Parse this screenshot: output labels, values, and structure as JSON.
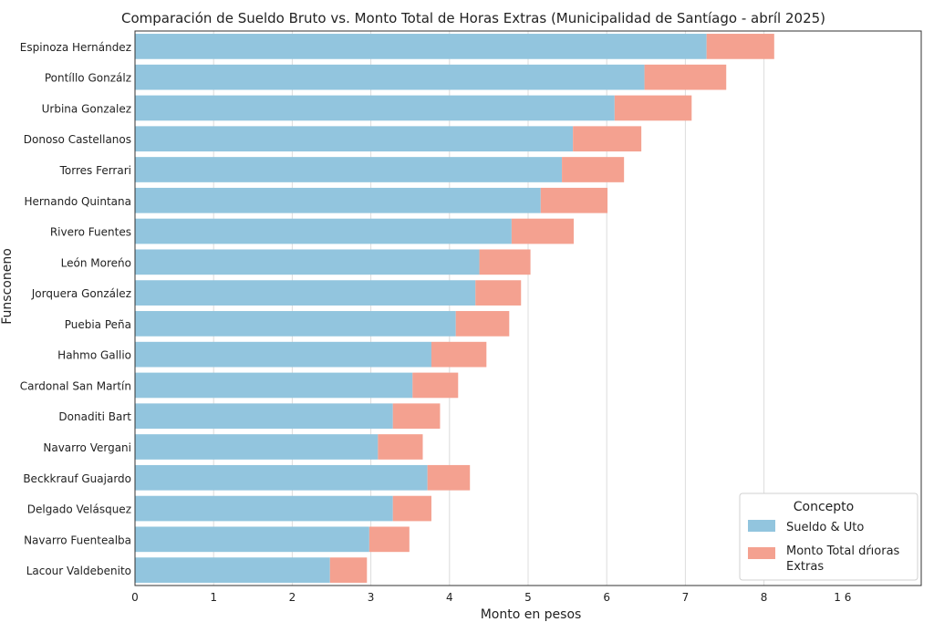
{
  "chart_data": {
    "type": "bar",
    "orientation": "horizontal",
    "stacked": true,
    "title": "Comparación de Sueldo Bruto vs. Monto Total de Horas Extras (Municipalidad de Santíago - abríl 2025)",
    "xlabel": "Monto en pesos",
    "ylabel": "Funsconeno",
    "xlim": [
      0,
      10
    ],
    "xticks": [
      "0",
      "1",
      "2",
      "3",
      "4",
      "5",
      "6",
      "7",
      "8",
      "1 6"
    ],
    "grid": true,
    "legend_position": "bottom-right",
    "legend_title": "Concepto",
    "categories": [
      "Espinoza Hernández",
      "Pontíllo Gonzálz",
      "Urbina Gonzalez",
      "Donoso Castellanos",
      "Torres Ferrari",
      "Hernando Quintana",
      "Rivero Fuentes",
      "León Moreńo",
      "Jorquera González",
      "Puebia Peña",
      "Hahmo Gallio",
      "Cardonal San Martín",
      "Donaditi Bart",
      "Navarro Vergani",
      "Beckkrauf Guajardo",
      "Delgado Velásquez",
      "Navarro Fuentealba",
      "Lacour Valdebenito"
    ],
    "series": [
      {
        "name": "Sueldo & Uto",
        "color": "#92c5de",
        "values": [
          7.27,
          6.48,
          6.1,
          5.57,
          5.43,
          5.16,
          4.79,
          4.38,
          4.33,
          4.08,
          3.77,
          3.53,
          3.28,
          3.09,
          3.72,
          3.28,
          2.98,
          2.48
        ]
      },
      {
        "name": "Monto Total dŕıoras Extras",
        "color": "#f4a190",
        "values": [
          0.86,
          1.04,
          0.98,
          0.87,
          0.79,
          0.85,
          0.79,
          0.65,
          0.58,
          0.68,
          0.7,
          0.58,
          0.6,
          0.57,
          0.54,
          0.49,
          0.51,
          0.47
        ]
      }
    ]
  }
}
